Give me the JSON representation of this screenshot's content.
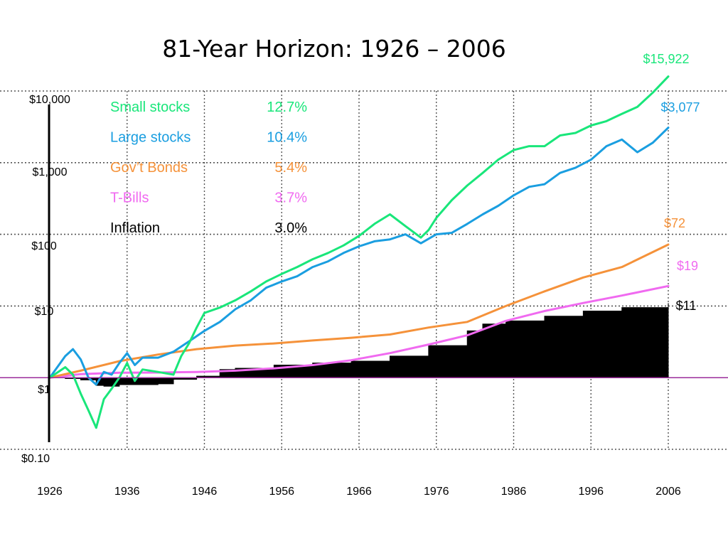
{
  "colors": {
    "small_stocks": "#19e67a",
    "large_stocks": "#1a9ee0",
    "bonds": "#f5923a",
    "tbills": "#f06af0",
    "inflation": "#000000",
    "baseline": "#9b2c9b",
    "grid": "#555555"
  },
  "chart_data": {
    "type": "line",
    "title": "81-Year Horizon: 1926 – 2006",
    "xlabel": "",
    "ylabel": "",
    "scale": "log",
    "xlim": [
      1926,
      2006
    ],
    "ylim": [
      0.1,
      10000
    ],
    "grid": true,
    "x_ticks": [
      "1926",
      "1936",
      "1946",
      "1956",
      "1966",
      "1976",
      "1986",
      "1996",
      "2006"
    ],
    "y_ticks": [
      "$10,000",
      "$1,000",
      "$100",
      "$10",
      "$1",
      "$0.10"
    ],
    "legend": [
      {
        "name": "Small stocks",
        "rate": "12.7%",
        "color_key": "small_stocks"
      },
      {
        "name": "Large stocks",
        "rate": "10.4%",
        "color_key": "large_stocks"
      },
      {
        "name": "Gov’t Bonds",
        "rate": "5.4%",
        "color_key": "bonds"
      },
      {
        "name": "T-Bills",
        "rate": "3.7%",
        "color_key": "tbills"
      },
      {
        "name": "Inflation",
        "rate": "3.0%",
        "color_key": "inflation"
      }
    ],
    "series": [
      {
        "key": "small_stocks",
        "ending_label": "$15,922",
        "x": [
          1926,
          1928,
          1929,
          1930,
          1931,
          1932,
          1933,
          1934,
          1935,
          1936,
          1937,
          1938,
          1940,
          1942,
          1943,
          1944,
          1945,
          1946,
          1948,
          1950,
          1952,
          1954,
          1956,
          1958,
          1960,
          1962,
          1964,
          1966,
          1968,
          1970,
          1972,
          1974,
          1975,
          1976,
          1978,
          1980,
          1982,
          1984,
          1986,
          1988,
          1990,
          1992,
          1994,
          1996,
          1998,
          2000,
          2002,
          2004,
          2006
        ],
        "y": [
          1,
          1.4,
          1.1,
          0.6,
          0.35,
          0.2,
          0.5,
          0.7,
          1.0,
          1.6,
          0.9,
          1.3,
          1.2,
          1.1,
          2.0,
          3.0,
          5.0,
          8.0,
          9.5,
          12,
          16,
          22,
          28,
          35,
          45,
          55,
          70,
          95,
          140,
          190,
          130,
          90,
          115,
          170,
          300,
          480,
          720,
          1100,
          1500,
          1700,
          1700,
          2400,
          2600,
          3300,
          3800,
          4800,
          6000,
          9500,
          15922
        ]
      },
      {
        "key": "large_stocks",
        "ending_label": "$3,077",
        "x": [
          1926,
          1928,
          1929,
          1930,
          1931,
          1932,
          1933,
          1934,
          1935,
          1936,
          1937,
          1938,
          1940,
          1942,
          1944,
          1946,
          1948,
          1950,
          1952,
          1954,
          1956,
          1958,
          1960,
          1962,
          1964,
          1966,
          1968,
          1970,
          1972,
          1974,
          1976,
          1978,
          1980,
          1982,
          1984,
          1986,
          1988,
          1990,
          1992,
          1994,
          1996,
          1998,
          2000,
          2002,
          2004,
          2006
        ],
        "y": [
          1,
          2.0,
          2.5,
          1.8,
          1.0,
          0.8,
          1.2,
          1.1,
          1.6,
          2.2,
          1.5,
          1.9,
          1.9,
          2.3,
          3.2,
          4.5,
          6.0,
          9.0,
          12,
          18,
          22,
          26,
          35,
          42,
          55,
          68,
          80,
          85,
          100,
          75,
          100,
          105,
          140,
          190,
          250,
          350,
          460,
          500,
          720,
          850,
          1100,
          1700,
          2100,
          1400,
          1900,
          3077
        ]
      },
      {
        "key": "bonds",
        "ending_label": "$72",
        "x": [
          1926,
          1930,
          1935,
          1940,
          1945,
          1950,
          1955,
          1960,
          1965,
          1970,
          1975,
          1980,
          1985,
          1990,
          1995,
          2000,
          2006
        ],
        "y": [
          1,
          1.25,
          1.7,
          2.1,
          2.5,
          2.8,
          3.0,
          3.3,
          3.6,
          4.0,
          5.0,
          6.0,
          10,
          16,
          25,
          35,
          72
        ]
      },
      {
        "key": "tbills",
        "ending_label": "$19",
        "x": [
          1926,
          1930,
          1935,
          1940,
          1945,
          1950,
          1955,
          1960,
          1965,
          1970,
          1975,
          1980,
          1985,
          1990,
          1995,
          2000,
          2006
        ],
        "y": [
          1,
          1.12,
          1.17,
          1.18,
          1.2,
          1.25,
          1.35,
          1.5,
          1.75,
          2.2,
          2.9,
          3.9,
          6.2,
          8.5,
          11,
          14,
          19
        ]
      },
      {
        "key": "inflation",
        "ending_label": "$11",
        "x": [
          1926,
          1928,
          1930,
          1932,
          1933,
          1935,
          1940,
          1942,
          1945,
          1948,
          1950,
          1955,
          1960,
          1965,
          1970,
          1975,
          1980,
          1982,
          1985,
          1990,
          1995,
          2000,
          2006
        ],
        "y": [
          1,
          0.97,
          0.93,
          0.78,
          0.76,
          0.8,
          0.82,
          0.95,
          1.05,
          1.3,
          1.35,
          1.5,
          1.6,
          1.7,
          2.0,
          2.8,
          4.5,
          5.6,
          6.2,
          7.2,
          8.5,
          9.5,
          11
        ]
      }
    ]
  }
}
